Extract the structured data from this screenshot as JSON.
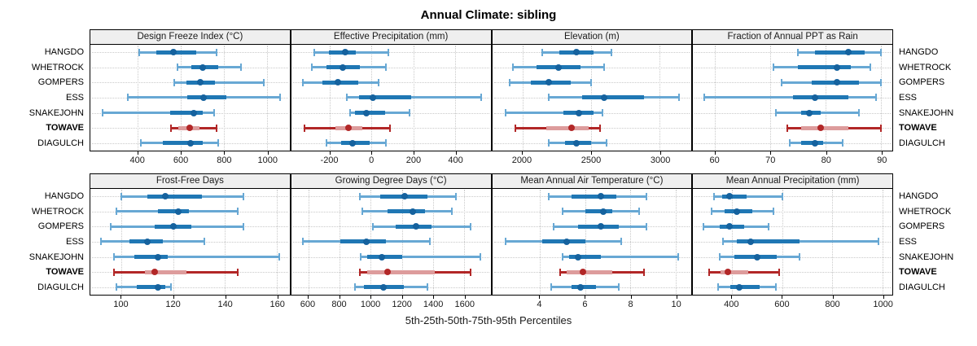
{
  "title": "Annual Climate: sibling",
  "axis_caption": "5th-25th-50th-75th-95th Percentiles",
  "stations": [
    "HANGDO",
    "WHETROCK",
    "GOMPERS",
    "ESS",
    "SNAKEJOHN",
    "TOWAVE",
    "DIAGULCH"
  ],
  "highlight_station": "TOWAVE",
  "percentile_labels": [
    "5th",
    "25th",
    "50th",
    "75th",
    "95th"
  ],
  "colors": {
    "normal_series": {
      "line": "#68a8d4",
      "band": "#1f77b4",
      "dot": "#15629e"
    },
    "highlight_series": {
      "line": "#b22727",
      "band": "#dd9c9c",
      "dot": "#b22727"
    },
    "grid": "#c9c9c9",
    "header_bg": "#efefef",
    "panel_border": "#000000"
  },
  "chart_data": [
    {
      "type": "range-dot",
      "title": "Design Freeze Index (°C)",
      "xlim": [
        180,
        1105
      ],
      "ticks": [
        400,
        600,
        800,
        1000
      ],
      "values": [
        [
          405,
          485,
          565,
          670,
          765
        ],
        [
          585,
          650,
          700,
          775,
          880
        ],
        [
          570,
          625,
          690,
          760,
          985
        ],
        [
          355,
          630,
          705,
          810,
          1060
        ],
        [
          235,
          550,
          660,
          700,
          755
        ],
        [
          555,
          590,
          640,
          685,
          765
        ],
        [
          415,
          515,
          645,
          700,
          775
        ]
      ]
    },
    {
      "type": "range-dot",
      "title": "Effective Precipitation (mm)",
      "xlim": [
        -385,
        570
      ],
      "ticks": [
        -200,
        0,
        200,
        400
      ],
      "values": [
        [
          -275,
          -205,
          -125,
          -75,
          80
        ],
        [
          -285,
          -215,
          -140,
          -55,
          70
        ],
        [
          -330,
          -235,
          -160,
          -65,
          35
        ],
        [
          -120,
          -60,
          5,
          190,
          525
        ],
        [
          -105,
          -80,
          -25,
          65,
          180
        ],
        [
          -320,
          -175,
          -110,
          -45,
          90
        ],
        [
          -215,
          -145,
          -90,
          -10,
          70
        ]
      ]
    },
    {
      "type": "range-dot",
      "title": "Elevation (m)",
      "xlim": [
        1780,
        3230
      ],
      "ticks": [
        2000,
        2500,
        3000
      ],
      "values": [
        [
          2145,
          2270,
          2395,
          2520,
          2650
        ],
        [
          1930,
          2100,
          2265,
          2420,
          2595
        ],
        [
          1910,
          2060,
          2190,
          2350,
          2500
        ],
        [
          2190,
          2435,
          2595,
          2885,
          3140
        ],
        [
          1880,
          2300,
          2410,
          2520,
          2585
        ],
        [
          1950,
          2175,
          2355,
          2480,
          2565
        ],
        [
          2190,
          2310,
          2395,
          2500,
          2615
        ]
      ]
    },
    {
      "type": "range-dot",
      "title": "Fraction of Annual PPT as Rain",
      "xlim": [
        56,
        92
      ],
      "ticks": [
        60,
        70,
        80,
        90
      ],
      "values": [
        [
          75,
          78,
          84,
          87,
          90
        ],
        [
          70.5,
          75,
          82,
          84.5,
          88
        ],
        [
          72,
          77.5,
          82,
          86,
          90
        ],
        [
          58,
          74,
          78,
          84,
          89
        ],
        [
          71,
          75.5,
          77,
          79,
          86
        ],
        [
          73,
          75.5,
          79,
          84,
          90
        ],
        [
          73.5,
          75.5,
          78,
          79.5,
          83
        ]
      ]
    },
    {
      "type": "range-dot",
      "title": "Frost-Free Days",
      "xlim": [
        88,
        165
      ],
      "ticks": [
        100,
        120,
        140,
        160
      ],
      "values": [
        [
          100,
          110,
          117,
          131,
          147
        ],
        [
          98,
          114,
          122,
          126,
          145
        ],
        [
          96,
          113,
          120,
          127,
          147
        ],
        [
          92,
          103,
          110,
          116,
          132
        ],
        [
          97,
          105,
          114,
          118,
          161
        ],
        [
          97,
          109,
          113,
          125,
          145
        ],
        [
          98,
          106,
          114,
          117,
          119
        ]
      ]
    },
    {
      "type": "range-dot",
      "title": "Growing Degree Days (°C)",
      "xlim": [
        490,
        1770
      ],
      "ticks": [
        600,
        800,
        1000,
        1200,
        1400,
        1600
      ],
      "values": [
        [
          930,
          1060,
          1220,
          1365,
          1550
        ],
        [
          945,
          1110,
          1270,
          1350,
          1520
        ],
        [
          1015,
          1160,
          1290,
          1390,
          1640
        ],
        [
          565,
          805,
          970,
          1100,
          1380
        ],
        [
          935,
          980,
          1070,
          1205,
          1705
        ],
        [
          930,
          980,
          1110,
          1410,
          1640
        ],
        [
          900,
          955,
          1080,
          1215,
          1365
        ]
      ]
    },
    {
      "type": "range-dot",
      "title": "Mean Annual Air Temperature (°C)",
      "xlim": [
        1.9,
        10.7
      ],
      "ticks": [
        4,
        6,
        8,
        10
      ],
      "values": [
        [
          4.4,
          5.4,
          6.7,
          7.4,
          8.7
        ],
        [
          5.0,
          6.0,
          6.8,
          7.2,
          8.4
        ],
        [
          4.6,
          5.7,
          6.7,
          7.5,
          8.7
        ],
        [
          2.5,
          4.1,
          5.2,
          6.0,
          7.6
        ],
        [
          5.0,
          5.3,
          5.7,
          6.7,
          10.1
        ],
        [
          4.9,
          5.2,
          5.9,
          7.2,
          8.6
        ],
        [
          4.5,
          5.4,
          5.8,
          6.5,
          7.5
        ]
      ]
    },
    {
      "type": "range-dot",
      "title": "Mean Annual Precipitation (mm)",
      "xlim": [
        245,
        1040
      ],
      "ticks": [
        400,
        600,
        800,
        1000
      ],
      "values": [
        [
          330,
          360,
          390,
          460,
          600
        ],
        [
          320,
          370,
          420,
          480,
          565
        ],
        [
          285,
          350,
          390,
          450,
          545
        ],
        [
          365,
          420,
          475,
          670,
          985
        ],
        [
          350,
          410,
          500,
          580,
          670
        ],
        [
          310,
          355,
          385,
          465,
          590
        ],
        [
          345,
          395,
          430,
          510,
          575
        ]
      ]
    }
  ]
}
